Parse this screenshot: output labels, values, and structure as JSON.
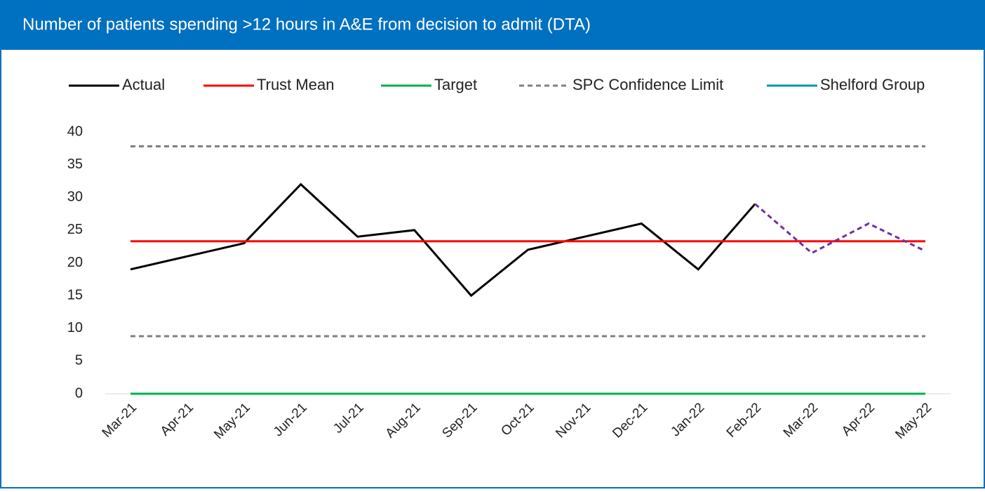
{
  "chart_data": {
    "type": "line",
    "title": "Number of patients spending >12 hours in A&E from decision to admit (DTA)",
    "categories": [
      "Mar-21",
      "Apr-21",
      "May-21",
      "Jun-21",
      "Jul-21",
      "Aug-21",
      "Sep-21",
      "Oct-21",
      "Nov-21",
      "Dec-21",
      "Jan-22",
      "Feb-22",
      "Mar-22",
      "Apr-22",
      "May-22"
    ],
    "series": [
      {
        "name": "Actual",
        "color": "#000000",
        "values": [
          19,
          21,
          23,
          32,
          24,
          25,
          15,
          22,
          24,
          26,
          19,
          29,
          null,
          null,
          null
        ]
      },
      {
        "name": "Trust Mean",
        "color": "#ff0000",
        "values": [
          23.3,
          23.3,
          23.3,
          23.3,
          23.3,
          23.3,
          23.3,
          23.3,
          23.3,
          23.3,
          23.3,
          23.3,
          23.3,
          23.3,
          23.3
        ]
      },
      {
        "name": "Target",
        "color": "#00b050",
        "values": [
          0,
          0,
          0,
          0,
          0,
          0,
          0,
          0,
          0,
          0,
          0,
          0,
          0,
          0,
          0
        ]
      },
      {
        "name": "SPC Confidence Limit",
        "color": "#808080",
        "style": "dashed",
        "values": [
          37.8,
          37.8,
          37.8,
          37.8,
          37.8,
          37.8,
          37.8,
          37.8,
          37.8,
          37.8,
          37.8,
          37.8,
          37.8,
          37.8,
          37.8
        ]
      },
      {
        "color": "#808080",
        "style": "dashed",
        "values": [
          8.8,
          8.8,
          8.8,
          8.8,
          8.8,
          8.8,
          8.8,
          8.8,
          8.8,
          8.8,
          8.8,
          8.8,
          8.8,
          8.8,
          8.8
        ]
      },
      {
        "name": "Shelford Group",
        "color": "#0096b4",
        "values": [
          null,
          null,
          null,
          null,
          null,
          null,
          null,
          null,
          null,
          null,
          null,
          null,
          null,
          null,
          null
        ]
      },
      {
        "color": "#7030a0",
        "style": "dashed",
        "values": [
          null,
          null,
          null,
          null,
          null,
          null,
          null,
          null,
          null,
          null,
          null,
          29,
          21.5,
          26,
          21.8
        ]
      }
    ],
    "ylim": [
      0,
      40
    ],
    "yticks": [
      0,
      5,
      10,
      15,
      20,
      25,
      30,
      35,
      40
    ],
    "legend": "top"
  }
}
